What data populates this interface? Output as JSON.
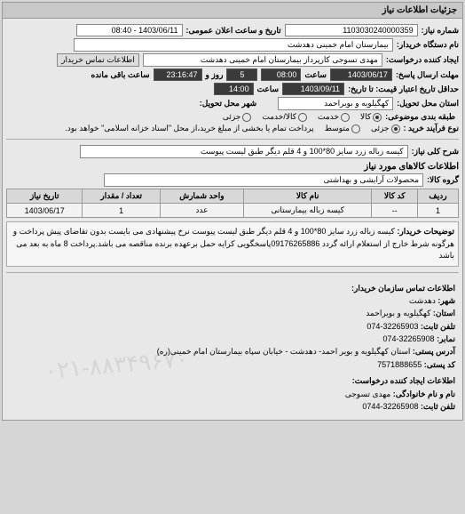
{
  "panel_title": "جزئیات اطلاعات نیاز",
  "fields": {
    "need_no_label": "شماره نیاز:",
    "need_no": "1103030240000359",
    "announce_label": "تاریخ و ساعت اعلان عمومی:",
    "announce": "1403/06/11 - 08:40",
    "org_label": "نام دستگاه خریدار:",
    "org": "بیمارستان امام خمینی دهدشت",
    "creator_label": "ایجاد کننده درخواست:",
    "creator": "مهدی تسوجی کارپرداز بیمارستان امام خمینی دهدشت",
    "contact_btn": "اطلاعات تماس خریدار",
    "deadline_label": "مهلت ارسال پاسخ:",
    "deadline_to_label": "تا تاریخ:",
    "deadline_date": "1403/06/17",
    "deadline_time_label": "ساعت",
    "deadline_time": "08:00",
    "remain_days": "5",
    "remain_days_label": "روز و",
    "remain_time": "23:16:47",
    "remain_suffix": "ساعت باقی مانده",
    "validity_label": "حداقل تاریخ اعتبار قیمت: تا تاریخ:",
    "validity_date": "1403/09/11",
    "validity_time_label": "ساعت",
    "validity_time": "14:00",
    "province_label": "استان محل تحویل:",
    "province": "کهگیلویه و بویراحمد",
    "city_label": "شهر محل تحویل:",
    "cat_label": "طبقه بندی موضوعی:",
    "cat_goods": "کالا",
    "cat_service": "خدمت",
    "cat_both": "کالا/خدمت",
    "cat_rare": "جزئی",
    "purchase_type_label": "نوع فرآیند خرید :",
    "purchase_rare": "جزئی",
    "purchase_mid": "متوسط",
    "purchase_note": "پرداخت تمام یا بخشی از مبلغ خرید،از محل \"اسناد خزانه اسلامی\" خواهد بود.",
    "need_title_label": "شرح کلی نیاز:",
    "need_title": "کیسه زباله زرد سایز 80*100 و 4 قلم دیگر طبق لیست پیوست",
    "items_section": "اطلاعات کالاهای مورد نیاز",
    "group_label": "گروه کالا:",
    "group": "محصولات آرایشی و بهداشتی"
  },
  "table": {
    "headers": [
      "ردیف",
      "کد کالا",
      "نام کالا",
      "واحد شمارش",
      "تعداد / مقدار",
      "تاریخ نیاز"
    ],
    "rows": [
      [
        "1",
        "--",
        "کیسه زباله بیمارستانی",
        "عدد",
        "1",
        "1403/06/17"
      ]
    ]
  },
  "desc": {
    "label": "توضیحات خریدار:",
    "text": "کیسه زباله زرد سایز 80*100 و 4 قلم دیگر طبق لیست پیوست نرخ پیشنهادی می بایست بدون تقاضای پیش پرداخت و هرگونه شرط خارج از استعلام ارائه گردد 09176265886پاسخگویی کرایه حمل برعهده برنده مناقصه می باشد.پرداخت 8 ماه به بعد می باشد"
  },
  "footer": {
    "addr_section": "اطلاعات تماس سازمان خریدار:",
    "city_l": "شهر:",
    "city_v": "دهدشت",
    "prov_l": "استان:",
    "prov_v": "کهگیلویه و بویراحمد",
    "tel_l": "تلفن ثابت:",
    "tel_v": "32265903-074",
    "fax_l": "نمابر:",
    "fax_v": "32265908-074",
    "post_l": "آدرس پستی:",
    "post_v": "استان کهگیلویه و بویر احمد- دهدشت - خیابان سپاه بیمارستان امام خمینی(ره)",
    "zip_l": "کد پستی:",
    "zip_v": "7571888655",
    "req_section": "اطلاعات ایجاد کننده درخواست:",
    "name_l": "نام و نام خانوادگی:",
    "name_v": "مهدی تسوجی",
    "tel2_l": "تلفن ثابت:",
    "tel2_v": "32265908-0744"
  },
  "watermark": "۰۲۱-۸۸۳۴۹۶۷۰"
}
